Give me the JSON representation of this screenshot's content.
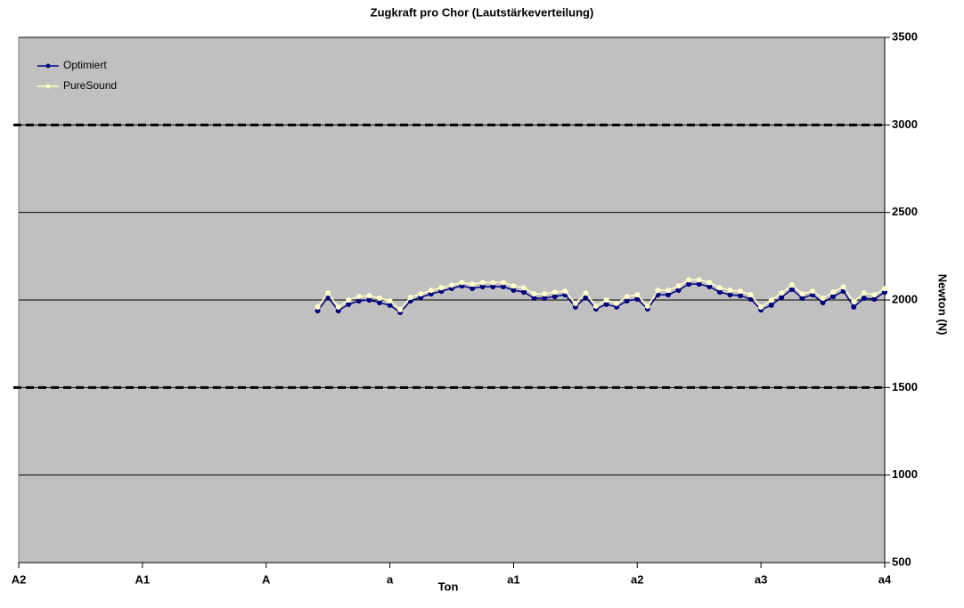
{
  "chart_data": {
    "type": "line",
    "title": "Zugkraft pro Chor (Lautstärkeverteilung)",
    "x_label": "Ton",
    "y_label": "Newton (N)",
    "categories": [
      "A2",
      null,
      null,
      null,
      null,
      null,
      null,
      null,
      null,
      null,
      null,
      null,
      "A1",
      null,
      null,
      null,
      null,
      null,
      null,
      null,
      null,
      null,
      null,
      null,
      "A",
      null,
      null,
      null,
      null,
      null,
      null,
      null,
      null,
      null,
      null,
      null,
      "a",
      null,
      null,
      null,
      null,
      null,
      null,
      null,
      null,
      null,
      null,
      null,
      "a1",
      null,
      null,
      null,
      null,
      null,
      null,
      null,
      null,
      null,
      null,
      null,
      "a2",
      null,
      null,
      null,
      null,
      null,
      null,
      null,
      null,
      null,
      null,
      null,
      "a3",
      null,
      null,
      null,
      null,
      null,
      null,
      null,
      null,
      null,
      null,
      null,
      "a4"
    ],
    "series": [
      {
        "name": "Optimiert",
        "color": "#000080",
        "values": [
          null,
          null,
          null,
          null,
          null,
          null,
          null,
          null,
          null,
          null,
          null,
          null,
          null,
          null,
          null,
          null,
          null,
          null,
          null,
          null,
          null,
          null,
          null,
          null,
          null,
          null,
          null,
          null,
          null,
          1939,
          2015,
          1939,
          1975,
          1995,
          2000,
          1985,
          1970,
          1929,
          1995,
          2015,
          2035,
          2050,
          2066,
          2081,
          2066,
          2076,
          2076,
          2076,
          2056,
          2045,
          2010,
          2010,
          2020,
          2030,
          1960,
          2015,
          1949,
          1975,
          1960,
          1995,
          2005,
          1949,
          2030,
          2030,
          2056,
          2091,
          2091,
          2076,
          2045,
          2030,
          2025,
          2005,
          1944,
          1970,
          2015,
          2061,
          2010,
          2030,
          1985,
          2020,
          2050,
          1960,
          2010,
          2005,
          2045
        ]
      },
      {
        "name": "PureSound",
        "color": "#ffffcc",
        "values": [
          null,
          null,
          null,
          null,
          null,
          null,
          null,
          null,
          null,
          null,
          null,
          null,
          null,
          null,
          null,
          null,
          null,
          null,
          null,
          null,
          null,
          null,
          null,
          null,
          null,
          null,
          null,
          null,
          null,
          1960,
          2040,
          1960,
          2000,
          2020,
          2025,
          2010,
          1995,
          1945,
          2015,
          2035,
          2055,
          2070,
          2085,
          2100,
          2090,
          2100,
          2100,
          2100,
          2080,
          2070,
          2035,
          2035,
          2045,
          2050,
          1980,
          2040,
          1965,
          2000,
          1980,
          2020,
          2030,
          1965,
          2055,
          2055,
          2080,
          2115,
          2115,
          2100,
          2070,
          2055,
          2050,
          2030,
          1960,
          2000,
          2040,
          2085,
          2035,
          2050,
          2010,
          2045,
          2075,
          1990,
          2040,
          2030,
          2065
        ]
      }
    ],
    "reference_lines": [
      3000,
      1500
    ],
    "ylim": [
      500,
      3500
    ],
    "yticks": [
      500,
      1000,
      1500,
      2000,
      2500,
      3000,
      3500
    ],
    "grid": true,
    "legend": "top-left",
    "background": "#c0c0c0"
  }
}
